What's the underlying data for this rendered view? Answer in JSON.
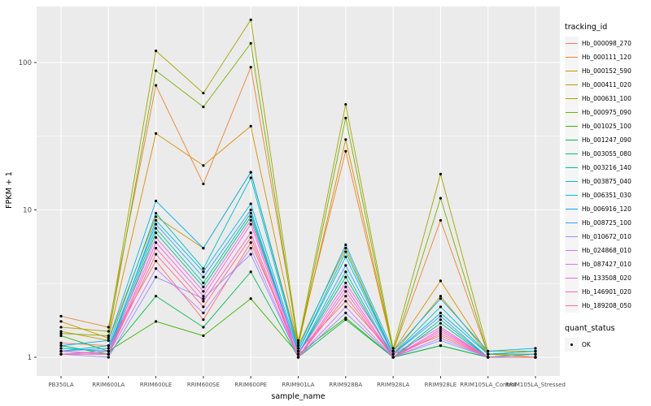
{
  "chart_data": {
    "type": "line",
    "title": "",
    "xlabel": "sample_name",
    "ylabel": "FPKM + 1",
    "y_scale": "log10",
    "y_ticks": [
      1,
      10,
      100
    ],
    "ylim": [
      0.75,
      240
    ],
    "grid": "on",
    "legend_position": "right",
    "colors": {
      "panel_bg": "#EBEBEB",
      "grid_major": "#FFFFFF",
      "grid_minor": "#FFFFFF",
      "point": "#000000",
      "axis_text": "#4D4D4D",
      "tick_mark": "#333333"
    },
    "x_categories": [
      "PB350LA",
      "RRIM600LA",
      "RRIM600LE",
      "RRIM600SE",
      "RRIM600PE",
      "RRIM901LA",
      "RRIM928BA",
      "RRIM928LA",
      "RRIM928LE",
      "RRIM105LA_Control",
      "RRIM105LA_Stressed"
    ],
    "series": [
      {
        "name": "Hb_000098_270",
        "color": "#F8766D",
        "values": [
          1.25,
          1.2,
          4.5,
          1.8,
          6.0,
          1.1,
          2.4,
          1.05,
          1.4,
          1.0,
          1.0
        ]
      },
      {
        "name": "Hb_000111_120",
        "color": "#EA8331",
        "values": [
          1.9,
          1.6,
          70,
          15,
          93,
          1.3,
          25,
          1.1,
          8.5,
          1.05,
          1.05
        ]
      },
      {
        "name": "Hb_000152_590",
        "color": "#D89000",
        "values": [
          1.75,
          1.35,
          33,
          20,
          37,
          1.2,
          30,
          1.1,
          3.3,
          1.05,
          1.0
        ]
      },
      {
        "name": "Hb_000411_020",
        "color": "#C09B00",
        "values": [
          1.5,
          1.3,
          9.0,
          5.5,
          18,
          1.2,
          5.5,
          1.05,
          2.6,
          1.05,
          1.05
        ]
      },
      {
        "name": "Hb_000631_100",
        "color": "#A3A500",
        "values": [
          1.6,
          1.5,
          120,
          62,
          195,
          1.25,
          52,
          1.15,
          17.5,
          1.1,
          1.1
        ]
      },
      {
        "name": "Hb_000975_090",
        "color": "#7CAE00",
        "values": [
          1.45,
          1.4,
          88,
          50,
          135,
          1.2,
          42,
          1.1,
          12,
          1.05,
          1.05
        ]
      },
      {
        "name": "Hb_001025_100",
        "color": "#39B600",
        "values": [
          1.4,
          1.1,
          1.75,
          1.4,
          2.5,
          1.05,
          1.85,
          1.0,
          1.2,
          1.0,
          1.0
        ]
      },
      {
        "name": "Hb_001247_090",
        "color": "#00BB4E",
        "values": [
          1.2,
          1.05,
          2.6,
          1.6,
          3.8,
          1.0,
          1.8,
          1.0,
          1.2,
          1.0,
          1.0
        ]
      },
      {
        "name": "Hb_003055_080",
        "color": "#00BF7D",
        "values": [
          1.1,
          1.05,
          7.0,
          3.0,
          9.0,
          1.05,
          3.5,
          1.0,
          1.7,
          1.0,
          1.0
        ]
      },
      {
        "name": "Hb_003216_140",
        "color": "#00C1A3",
        "values": [
          1.05,
          1.1,
          7.5,
          3.2,
          9.5,
          1.05,
          3.8,
          1.0,
          1.8,
          1.0,
          1.05
        ]
      },
      {
        "name": "Hb_003875_040",
        "color": "#00BFC4",
        "values": [
          1.1,
          1.2,
          9.5,
          4.0,
          16.5,
          1.1,
          5.2,
          1.05,
          2.2,
          1.05,
          1.1
        ]
      },
      {
        "name": "Hb_006351_030",
        "color": "#00BAE0",
        "values": [
          1.15,
          1.1,
          8.5,
          3.8,
          11,
          1.1,
          4.8,
          1.05,
          2.0,
          1.05,
          1.1
        ]
      },
      {
        "name": "Hb_006916_120",
        "color": "#00B0F6",
        "values": [
          1.2,
          1.3,
          11.5,
          5.5,
          18,
          1.15,
          5.8,
          1.1,
          2.5,
          1.1,
          1.15
        ]
      },
      {
        "name": "Hb_008725_100",
        "color": "#35A2FF",
        "values": [
          1.1,
          1.15,
          8.0,
          3.5,
          10,
          1.05,
          4.2,
          1.05,
          1.9,
          1.0,
          1.05
        ]
      },
      {
        "name": "Hb_010672_010",
        "color": "#9590FF",
        "values": [
          1.05,
          1.0,
          3.5,
          2.5,
          5.0,
          1.0,
          2.0,
          1.0,
          1.3,
          1.0,
          1.0
        ]
      },
      {
        "name": "Hb_024868_010",
        "color": "#C77CFF",
        "values": [
          1.05,
          1.05,
          4.0,
          2.0,
          5.5,
          1.0,
          2.2,
          1.0,
          1.35,
          1.0,
          1.0
        ]
      },
      {
        "name": "Hb_087427_010",
        "color": "#E76BF3",
        "values": [
          1.05,
          1.1,
          6.5,
          2.8,
          8.5,
          1.05,
          3.2,
          1.05,
          1.6,
          1.0,
          1.0
        ]
      },
      {
        "name": "Hb_133508_020",
        "color": "#FA62DB",
        "values": [
          1.05,
          1.05,
          6.0,
          2.6,
          8.0,
          1.0,
          3.0,
          1.0,
          1.55,
          1.0,
          1.0
        ]
      },
      {
        "name": "Hb_146901_020",
        "color": "#FF62BC",
        "values": [
          1.1,
          1.05,
          5.5,
          2.4,
          7.0,
          1.0,
          2.8,
          1.0,
          1.5,
          1.0,
          1.0
        ]
      },
      {
        "name": "Hb_189208_050",
        "color": "#FF6A98",
        "values": [
          1.05,
          1.05,
          5.0,
          2.2,
          6.5,
          1.0,
          2.6,
          1.0,
          1.45,
          1.0,
          1.0
        ]
      }
    ],
    "legend": {
      "color_title": "tracking_id",
      "shape_title": "quant_status",
      "shape_items": [
        {
          "label": "OK"
        }
      ]
    }
  }
}
